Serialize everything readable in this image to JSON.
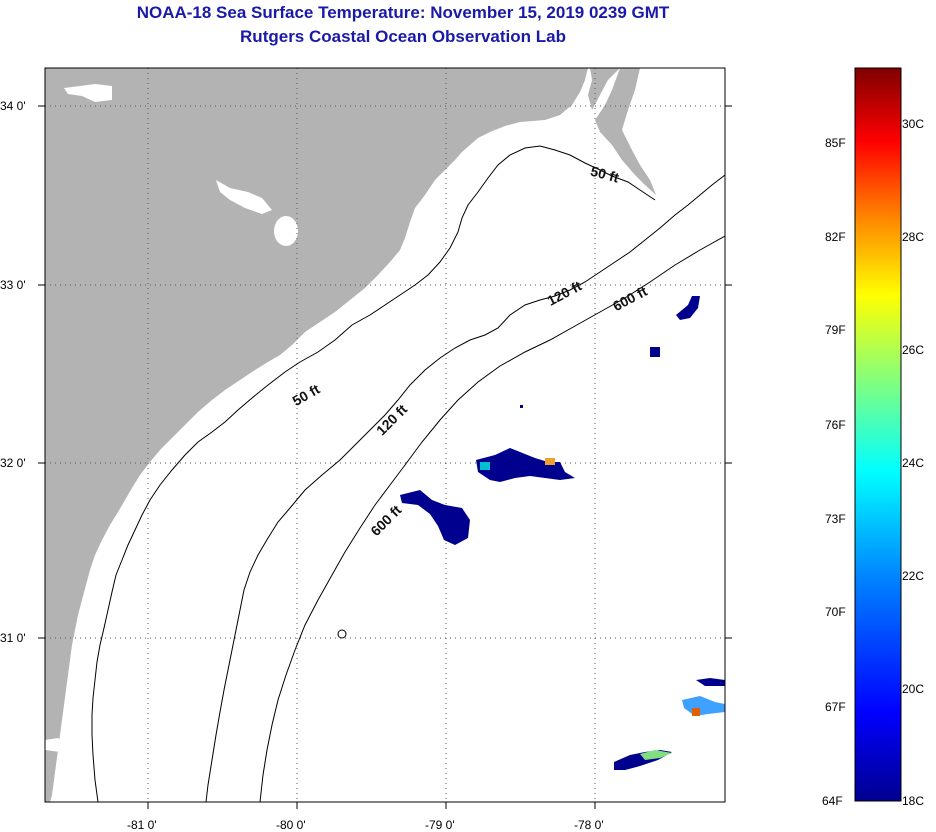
{
  "header": {
    "title": "NOAA-18 Sea Surface Temperature:  November 15, 2019 0239 GMT",
    "subtitle": "Rutgers Coastal Ocean Observation Lab"
  },
  "map": {
    "lat_ticks": [
      "34 0'",
      "33 0'",
      "32 0'",
      "31 0'"
    ],
    "lon_ticks": [
      "-81 0'",
      "-80 0'",
      "-79 0'",
      "-78 0'"
    ],
    "contour_labels": [
      "50 ft",
      "120 ft",
      "600 ft",
      "50 ft",
      "120 ft",
      "600 ft"
    ],
    "colors": {
      "land": "#b3b3b3",
      "ocean": "#ffffff",
      "sst_cold": "#00008f"
    }
  },
  "colorbar": {
    "fahrenheit": [
      "85F",
      "82F",
      "79F",
      "76F",
      "73F",
      "70F",
      "67F",
      "64F"
    ],
    "celsius": [
      "30C",
      "28C",
      "26C",
      "24C",
      "22C",
      "20C",
      "18C"
    ],
    "colors": [
      "#00008f",
      "#0000ff",
      "#0080ff",
      "#00ffff",
      "#80ff80",
      "#ffff00",
      "#ff8000",
      "#ff0000",
      "#800000"
    ]
  }
}
